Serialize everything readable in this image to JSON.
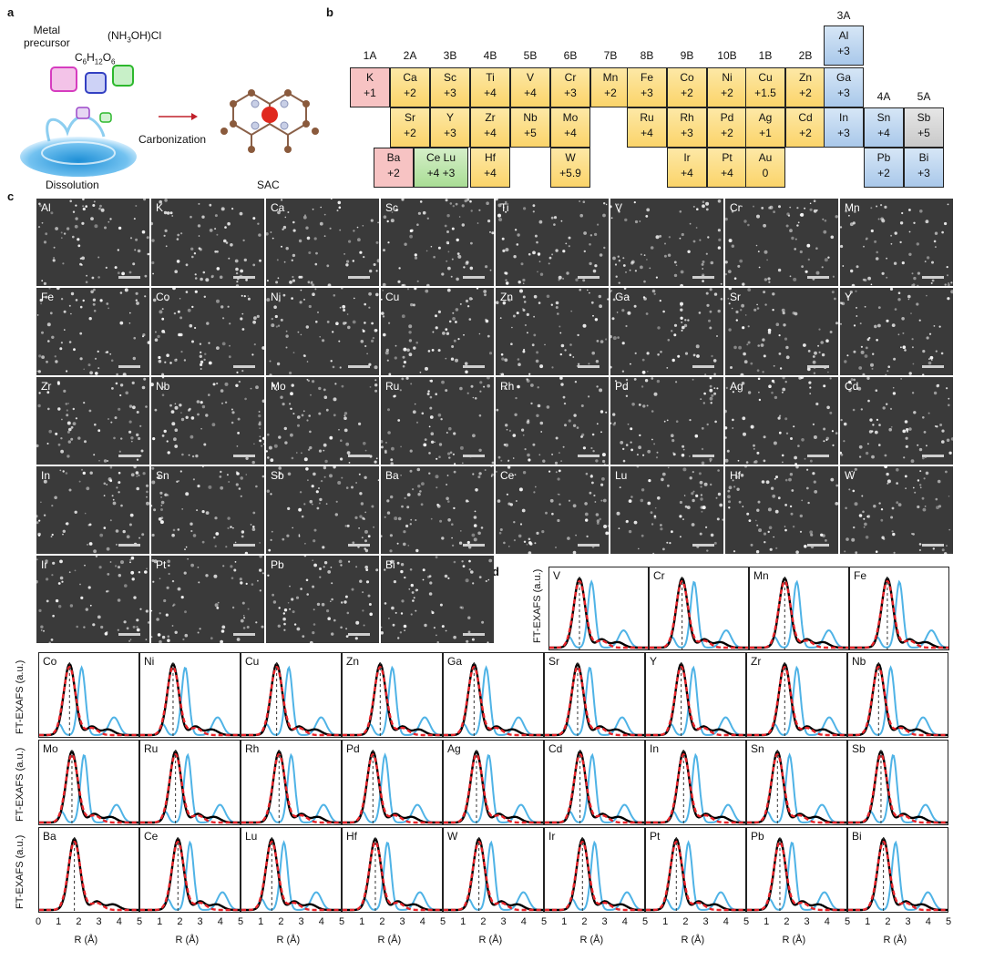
{
  "panel_letters": {
    "a": "a",
    "b": "b",
    "c": "c",
    "d": "d"
  },
  "panel_a": {
    "metal_precursor": "Metal\nprecursor",
    "glucose_formula": "C6H12O6",
    "hydroxylamine": "(NH3OH)Cl",
    "carbonization": "Carbonization",
    "dissolution": "Dissolution",
    "sac": "SAC"
  },
  "periodic_table": {
    "groups": [
      "1A",
      "2A",
      "3B",
      "4B",
      "5B",
      "6B",
      "7B",
      "8B",
      "9B",
      "10B",
      "1B",
      "2B",
      "3A",
      "4A",
      "5A"
    ],
    "cells": [
      {
        "sym": "K",
        "ox": "+1",
        "color": "red"
      },
      {
        "sym": "Ca",
        "ox": "+2",
        "color": "yellow"
      },
      {
        "sym": "Sc",
        "ox": "+3",
        "color": "yellow"
      },
      {
        "sym": "Ti",
        "ox": "+4",
        "color": "yellow"
      },
      {
        "sym": "V",
        "ox": "+4",
        "color": "yellow"
      },
      {
        "sym": "Cr",
        "ox": "+3",
        "color": "yellow"
      },
      {
        "sym": "Mn",
        "ox": "+2",
        "color": "yellow"
      },
      {
        "sym": "Fe",
        "ox": "+3",
        "color": "yellow"
      },
      {
        "sym": "Co",
        "ox": "+2",
        "color": "yellow"
      },
      {
        "sym": "Ni",
        "ox": "+2",
        "color": "yellow"
      },
      {
        "sym": "Cu",
        "ox": "+1.5",
        "color": "yellow"
      },
      {
        "sym": "Zn",
        "ox": "+2",
        "color": "yellow"
      },
      {
        "sym": "Al",
        "ox": "+3",
        "color": "blue"
      },
      {
        "sym": "Ga",
        "ox": "+3",
        "color": "blue"
      },
      {
        "sym": "Sr",
        "ox": "+2",
        "color": "yellow"
      },
      {
        "sym": "Y",
        "ox": "+3",
        "color": "yellow"
      },
      {
        "sym": "Zr",
        "ox": "+4",
        "color": "yellow"
      },
      {
        "sym": "Nb",
        "ox": "+5",
        "color": "yellow"
      },
      {
        "sym": "Mo",
        "ox": "+4",
        "color": "yellow"
      },
      {
        "sym": "Ru",
        "ox": "+4",
        "color": "yellow"
      },
      {
        "sym": "Rh",
        "ox": "+3",
        "color": "yellow"
      },
      {
        "sym": "Pd",
        "ox": "+2",
        "color": "yellow"
      },
      {
        "sym": "Ag",
        "ox": "+1",
        "color": "yellow"
      },
      {
        "sym": "Cd",
        "ox": "+2",
        "color": "yellow"
      },
      {
        "sym": "In",
        "ox": "+3",
        "color": "blue"
      },
      {
        "sym": "Sn",
        "ox": "+4",
        "color": "blue"
      },
      {
        "sym": "Sb",
        "ox": "+5",
        "color": "grey"
      },
      {
        "sym": "Ba",
        "ox": "+2",
        "color": "red"
      },
      {
        "sym": "Ce Lu",
        "ox": "+4 +3",
        "color": "green"
      },
      {
        "sym": "Hf",
        "ox": "+4",
        "color": "yellow"
      },
      {
        "sym": "W",
        "ox": "+5.9",
        "color": "yellow"
      },
      {
        "sym": "Ir",
        "ox": "+4",
        "color": "yellow"
      },
      {
        "sym": "Pt",
        "ox": "+4",
        "color": "yellow"
      },
      {
        "sym": "Au",
        "ox": "0",
        "color": "yellow"
      },
      {
        "sym": "Pb",
        "ox": "+2",
        "color": "blue"
      },
      {
        "sym": "Bi",
        "ox": "+3",
        "color": "blue"
      }
    ]
  },
  "stem_tiles": [
    "Al",
    "K",
    "Ca",
    "Sc",
    "Ti",
    "V",
    "Cr",
    "Mn",
    "Fe",
    "Co",
    "Ni",
    "Cu",
    "Zn",
    "Ga",
    "Sr",
    "Y",
    "Zr",
    "Nb",
    "Mo",
    "Ru",
    "Rh",
    "Pd",
    "Ag",
    "Cd",
    "In",
    "Sn",
    "Sb",
    "Ba",
    "Ce",
    "Lu",
    "Hf",
    "W",
    "Ir",
    "Pt",
    "Pb",
    "Bi"
  ],
  "exafs": {
    "ylabel": "FT-EXAFS (a.u.)",
    "xlabel": "R (Å)",
    "x_ticks": [
      "0",
      "1",
      "2",
      "3",
      "4",
      "5"
    ],
    "top_row": [
      "V",
      "Cr",
      "Mn",
      "Fe"
    ],
    "row1": [
      "Co",
      "Ni",
      "Cu",
      "Zn",
      "Ga",
      "Sr",
      "Y",
      "Zr",
      "Nb"
    ],
    "row2": [
      "Mo",
      "Ru",
      "Rh",
      "Pd",
      "Ag",
      "Cd",
      "In",
      "Sn",
      "Sb"
    ],
    "row3": [
      "Ba",
      "Ce",
      "Lu",
      "Hf",
      "W",
      "Ir",
      "Pt",
      "Pb",
      "Bi"
    ],
    "colors": {
      "experiment": "#000000",
      "fit": "#e8242a",
      "reference": "#4fb3e6"
    }
  }
}
